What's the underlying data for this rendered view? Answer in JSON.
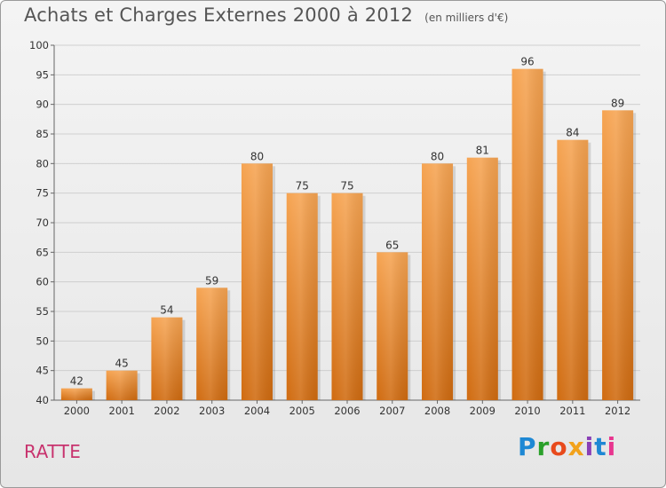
{
  "header": {
    "title": "Achats et Charges Externes 2000 à 2012",
    "subtitle": "(en milliers d'€)"
  },
  "footer": {
    "city": "RATTE",
    "logo_letters": [
      "P",
      "r",
      "o",
      "x",
      "i",
      "t",
      "i"
    ]
  },
  "colors": {
    "bar_top": "#f6a452",
    "bar_bottom": "#d06b10",
    "grid": "#cfcfcf",
    "city": "#c8336e",
    "title": "#555555"
  },
  "chart_data": {
    "type": "bar",
    "title": "Achats et Charges Externes 2000 à 2012",
    "subtitle": "(en milliers d'€)",
    "xlabel": "",
    "ylabel": "",
    "categories": [
      "2000",
      "2001",
      "2002",
      "2003",
      "2004",
      "2005",
      "2006",
      "2007",
      "2008",
      "2009",
      "2010",
      "2011",
      "2012"
    ],
    "values": [
      42,
      45,
      54,
      59,
      80,
      75,
      75,
      65,
      80,
      81,
      96,
      84,
      89
    ],
    "ylim": [
      40,
      100
    ],
    "yticks": [
      40,
      45,
      50,
      55,
      60,
      65,
      70,
      75,
      80,
      85,
      90,
      95,
      100
    ],
    "grid": true,
    "legend": "none"
  }
}
